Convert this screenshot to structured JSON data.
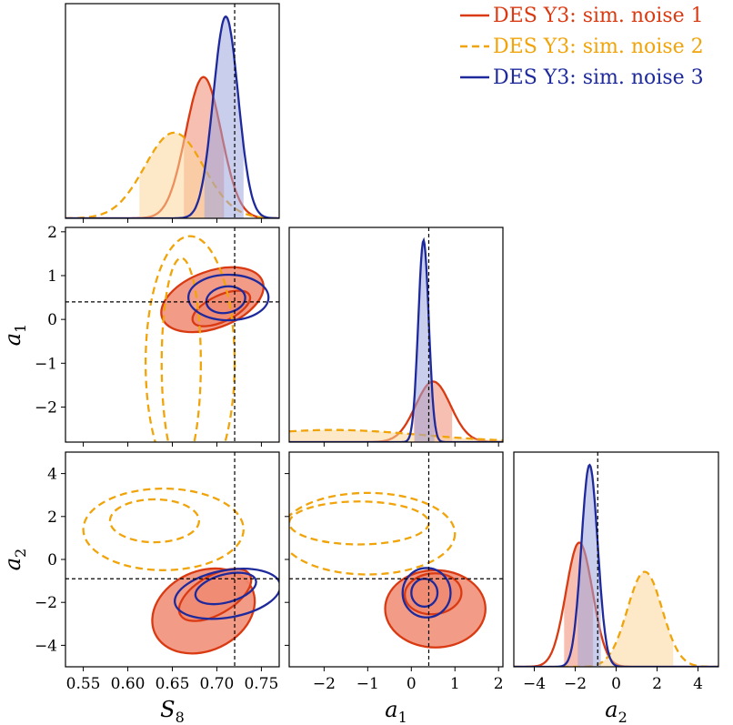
{
  "chart_data": {
    "type": "corner",
    "title": "",
    "parameters": [
      {
        "key": "S8",
        "symbol": "S",
        "subscript": "8",
        "range": [
          0.53,
          0.77
        ],
        "ticks": [
          0.55,
          0.6,
          0.65,
          0.7,
          0.75
        ],
        "tick_labels": [
          "0.55",
          "0.60",
          "0.65",
          "0.70",
          "0.75"
        ],
        "truth": 0.72
      },
      {
        "key": "a1",
        "symbol": "a",
        "subscript": "1",
        "range": [
          -2.8,
          2.1
        ],
        "ticks": [
          -2,
          -1,
          0,
          1,
          2
        ],
        "tick_labels": [
          "−2",
          "−1",
          "0",
          "1",
          "2"
        ],
        "truth": 0.4
      },
      {
        "key": "a2",
        "symbol": "a",
        "subscript": "2",
        "range": [
          -5,
          5
        ],
        "ticks": [
          -4,
          -2,
          0,
          2,
          4
        ],
        "tick_labels": [
          "−4",
          "−2",
          "0",
          "2",
          "4"
        ],
        "truth": -0.9
      }
    ],
    "legend": {
      "placement": "top-right"
    },
    "series": [
      {
        "name": "DES Y3: sim. noise 1",
        "color": "#d93a12",
        "fill": "#f08a72",
        "style": "solid",
        "mean": [
          0.685,
          0.5,
          -1.8
        ],
        "sigma": [
          0.02,
          0.4,
          0.65
        ],
        "interval68": {
          "S8": [
            0.663,
            0.708
          ],
          "a1": [
            0.05,
            0.95
          ],
          "a2": [
            -2.55,
            -1.1
          ]
        },
        "contours": {
          "S8_a1": {
            "c68": {
              "center": [
                0.705,
                0.25
              ],
              "semi_axes": [
                0.035,
                0.3
              ],
              "angle_deg": 25
            },
            "c95": {
              "center": [
                0.695,
                0.45
              ],
              "semi_axes": [
                0.06,
                0.65
              ],
              "angle_deg": 20
            }
          },
          "S8_a2": {
            "c68": {
              "center": [
                0.698,
                -1.65
              ],
              "semi_axes": [
                0.045,
                0.9
              ],
              "angle_deg": 30
            },
            "c95": {
              "center": [
                0.685,
                -2.4
              ],
              "semi_axes": [
                0.06,
                1.85
              ],
              "angle_deg": 25
            }
          },
          "a1_a2": {
            "c68": {
              "center": [
                0.5,
                -1.6
              ],
              "semi_axes": [
                0.65,
                0.95
              ],
              "angle_deg": 5
            },
            "c95": {
              "center": [
                0.55,
                -2.3
              ],
              "semi_axes": [
                1.15,
                1.8
              ],
              "angle_deg": 0
            }
          }
        }
      },
      {
        "name": "DES Y3: sim. noise 2",
        "color": "#f0a40a",
        "fill": "#fbd79a",
        "style": "dashed",
        "mean": [
          0.652,
          -1.8,
          1.4
        ],
        "sigma": [
          0.033,
          2.0,
          0.85
        ],
        "interval68": {
          "S8": [
            0.613,
            0.706
          ],
          "a1": [
            -2.8,
            2.1
          ],
          "a2": [
            -0.9,
            2.8
          ]
        },
        "contours": {
          "S8_a1": {
            "c68": {
              "center": [
                0.66,
                -1.0
              ],
              "semi_axes": [
                0.022,
                2.4
              ],
              "angle_deg": 0
            },
            "c95": {
              "center": [
                0.67,
                -1.0
              ],
              "semi_axes": [
                0.05,
                2.9
              ],
              "angle_deg": 0
            }
          },
          "S8_a2": {
            "c68": {
              "center": [
                0.63,
                1.8
              ],
              "semi_axes": [
                0.05,
                1.0
              ],
              "angle_deg": 0
            },
            "c95": {
              "center": [
                0.64,
                1.4
              ],
              "semi_axes": [
                0.09,
                1.9
              ],
              "angle_deg": 0
            }
          },
          "a1_a2": {
            "c68": {
              "center": [
                -1.2,
                1.7
              ],
              "semi_axes": [
                1.6,
                1.0
              ],
              "angle_deg": 0
            },
            "c95": {
              "center": [
                -1.0,
                1.2
              ],
              "semi_axes": [
                2.0,
                1.9
              ],
              "angle_deg": 0
            }
          }
        }
      },
      {
        "name": "DES Y3: sim. noise 3",
        "color": "#1e2a9c",
        "fill": "#9fa6de",
        "style": "solid",
        "mean": [
          0.71,
          0.28,
          -1.3
        ],
        "sigma": [
          0.014,
          0.12,
          0.4
        ],
        "interval68": {
          "S8": [
            0.686,
            0.73
          ],
          "a1": [
            0.07,
            0.53
          ],
          "a2": [
            -1.9,
            -0.75
          ]
        },
        "contours": {
          "S8_a1": {
            "c68": {
              "center": [
                0.71,
                0.45
              ],
              "semi_axes": [
                0.022,
                0.3
              ],
              "angle_deg": 10
            },
            "c95": {
              "center": [
                0.713,
                0.5
              ],
              "semi_axes": [
                0.045,
                0.52
              ],
              "angle_deg": 0
            }
          },
          "S8_a2": {
            "c68": {
              "center": [
                0.71,
                -1.35
              ],
              "semi_axes": [
                0.035,
                0.65
              ],
              "angle_deg": 15
            },
            "c95": {
              "center": [
                0.712,
                -1.6
              ],
              "semi_axes": [
                0.06,
                1.1
              ],
              "angle_deg": 10
            }
          },
          "a1_a2": {
            "c68": {
              "center": [
                0.3,
                -1.55
              ],
              "semi_axes": [
                0.3,
                0.65
              ],
              "angle_deg": 0
            },
            "c95": {
              "center": [
                0.35,
                -1.55
              ],
              "semi_axes": [
                0.55,
                1.15
              ],
              "angle_deg": 0
            }
          }
        }
      }
    ]
  }
}
